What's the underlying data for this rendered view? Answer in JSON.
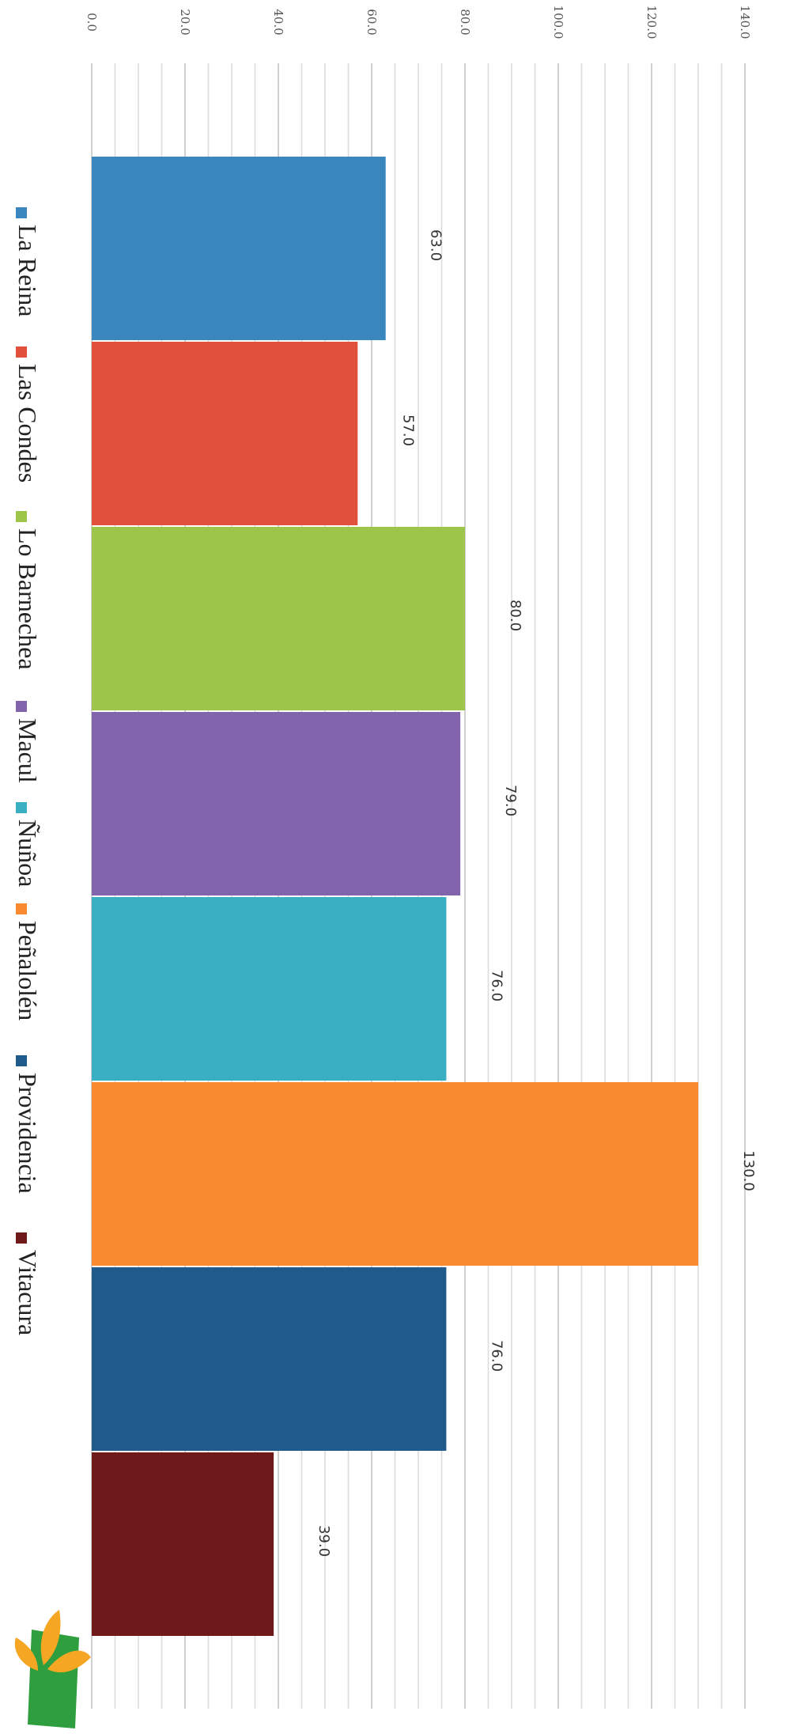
{
  "chart_data": {
    "type": "bar",
    "title": "",
    "xlabel": "",
    "ylabel": "",
    "ylim": [
      0,
      140
    ],
    "yticks": [
      "0.0",
      "20.0",
      "40.0",
      "60.0",
      "80.0",
      "100.0",
      "120.0",
      "140.0"
    ],
    "grid": true,
    "legend_position": "bottom",
    "series": [
      {
        "name": "La Reina",
        "value": 63.0,
        "label": "63.0",
        "color": "#3a86bf"
      },
      {
        "name": "Las Condes",
        "value": 57.0,
        "label": "57.0",
        "color": "#e0503a"
      },
      {
        "name": "Lo Barnechea",
        "value": 80.0,
        "label": "80.0",
        "color": "#9cc54a"
      },
      {
        "name": "Macul",
        "value": 79.0,
        "label": "79.0",
        "color": "#8264ad"
      },
      {
        "name": "Ñuñoa",
        "value": 76.0,
        "label": "76.0",
        "color": "#3aaec2"
      },
      {
        "name": "Peñalolén",
        "value": 130.0,
        "label": "130.0",
        "color": "#f98a30"
      },
      {
        "name": "Providencia",
        "value": 76.0,
        "label": "76.0",
        "color": "#1f5a8a"
      },
      {
        "name": "Vitacura",
        "value": 39.0,
        "label": "39.0",
        "color": "#6e1a1a"
      }
    ]
  },
  "logo": {
    "icon": "leaf-logo-icon",
    "colors": [
      "#2e9e3f",
      "#f5a623"
    ]
  }
}
